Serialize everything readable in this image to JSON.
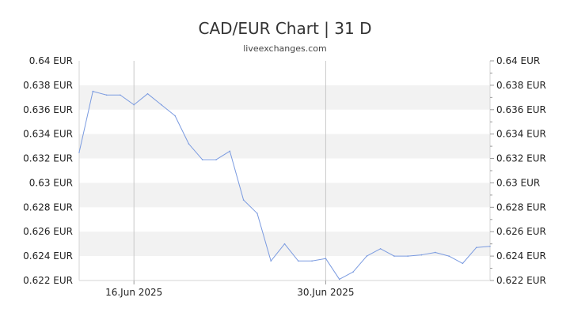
{
  "header": {
    "title": "CAD/EUR Chart | 31 D",
    "subtitle": "liveexchanges.com"
  },
  "chart_data": {
    "type": "line",
    "title": "CAD/EUR Chart | 31 D",
    "subtitle": "liveexchanges.com",
    "xlabel": "",
    "ylabel": "",
    "ylim": [
      0.622,
      0.64
    ],
    "y_ticks": [
      0.622,
      0.624,
      0.626,
      0.628,
      0.63,
      0.632,
      0.634,
      0.636,
      0.638,
      0.64
    ],
    "y_tick_labels": [
      "0.622 EUR",
      "0.624 EUR",
      "0.626 EUR",
      "0.628 EUR",
      "0.63 EUR",
      "0.632 EUR",
      "0.634 EUR",
      "0.636 EUR",
      "0.638 EUR",
      "0.64 EUR"
    ],
    "x_tick_labels": [
      {
        "date": "2025-06-16",
        "label": "16.Jun 2025"
      },
      {
        "date": "2025-06-30",
        "label": "30.Jun 2025"
      }
    ],
    "grid": {
      "alternating_bands": true,
      "vertical_lines_at_x_ticks": true
    },
    "legend": "none",
    "line_color": "#7b9be0",
    "band_color": "#f2f2f2",
    "series": [
      {
        "values": [
          {
            "x": "2025-06-12",
            "y": 0.6325
          },
          {
            "x": "2025-06-13",
            "y": 0.6375
          },
          {
            "x": "2025-06-14",
            "y": 0.6372
          },
          {
            "x": "2025-06-15",
            "y": 0.6372
          },
          {
            "x": "2025-06-16",
            "y": 0.6364
          },
          {
            "x": "2025-06-17",
            "y": 0.6373
          },
          {
            "x": "2025-06-18",
            "y": 0.6364
          },
          {
            "x": "2025-06-19",
            "y": 0.6355
          },
          {
            "x": "2025-06-20",
            "y": 0.6332
          },
          {
            "x": "2025-06-21",
            "y": 0.6319
          },
          {
            "x": "2025-06-22",
            "y": 0.6319
          },
          {
            "x": "2025-06-23",
            "y": 0.6326
          },
          {
            "x": "2025-06-24",
            "y": 0.6286
          },
          {
            "x": "2025-06-25",
            "y": 0.6275
          },
          {
            "x": "2025-06-26",
            "y": 0.6236
          },
          {
            "x": "2025-06-27",
            "y": 0.625
          },
          {
            "x": "2025-06-28",
            "y": 0.6236
          },
          {
            "x": "2025-06-29",
            "y": 0.6236
          },
          {
            "x": "2025-06-30",
            "y": 0.6238
          },
          {
            "x": "2025-07-01",
            "y": 0.6221
          },
          {
            "x": "2025-07-02",
            "y": 0.6227
          },
          {
            "x": "2025-07-03",
            "y": 0.624
          },
          {
            "x": "2025-07-04",
            "y": 0.6246
          },
          {
            "x": "2025-07-05",
            "y": 0.624
          },
          {
            "x": "2025-07-06",
            "y": 0.624
          },
          {
            "x": "2025-07-07",
            "y": 0.6241
          },
          {
            "x": "2025-07-08",
            "y": 0.6243
          },
          {
            "x": "2025-07-09",
            "y": 0.624
          },
          {
            "x": "2025-07-10",
            "y": 0.6234
          },
          {
            "x": "2025-07-11",
            "y": 0.6247
          },
          {
            "x": "2025-07-12",
            "y": 0.6248
          }
        ]
      }
    ]
  }
}
